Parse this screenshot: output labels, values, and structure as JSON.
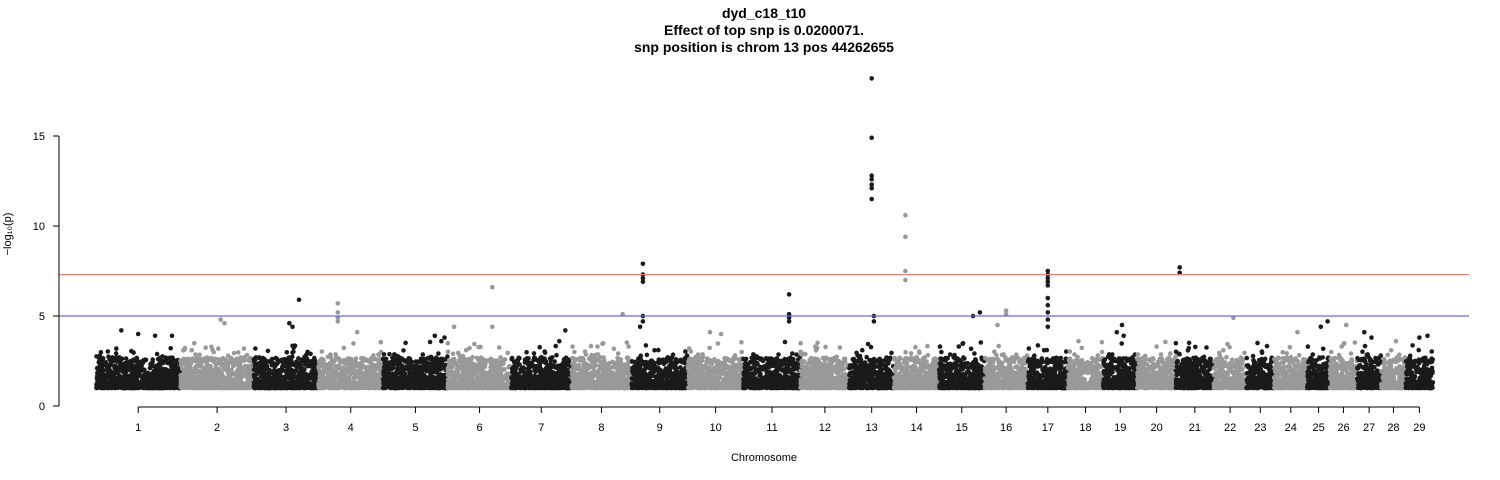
{
  "chart_data": {
    "type": "scatter",
    "title": "dyd_c18_t10",
    "subtitle_lines": [
      "Effect of top snp is 0.0200071.",
      "snp position is chrom 13 pos 44262655"
    ],
    "xlabel": "Chromosome",
    "ylabel": "−log₁₀(p)",
    "ylim": [
      0,
      18.5
    ],
    "yticks": [
      0,
      5,
      10,
      15
    ],
    "grid": false,
    "legend": "none",
    "series_colors": [
      "#1a1a1a",
      "#999999"
    ],
    "significance_lines": [
      {
        "value": 7.3,
        "color": "#f08080"
      },
      {
        "value": 5.0,
        "color": "#6b6be6"
      }
    ],
    "chromosomes": [
      {
        "label": "1",
        "size": 158,
        "peaks": [
          [
            0.3,
            4.2
          ],
          [
            0.5,
            4.0
          ],
          [
            0.7,
            3.9
          ],
          [
            0.9,
            3.9
          ]
        ]
      },
      {
        "label": "2",
        "size": 137,
        "peaks": [
          [
            0.55,
            4.8
          ],
          [
            0.6,
            4.6
          ]
        ]
      },
      {
        "label": "3",
        "size": 121,
        "peaks": [
          [
            0.55,
            4.6
          ],
          [
            0.6,
            4.4
          ],
          [
            0.7,
            5.9
          ]
        ]
      },
      {
        "label": "4",
        "size": 121,
        "peaks": [
          [
            0.3,
            4.9
          ],
          [
            0.3,
            4.7
          ],
          [
            0.3,
            5.2
          ],
          [
            0.3,
            5.7
          ],
          [
            0.6,
            4.1
          ]
        ]
      },
      {
        "label": "5",
        "size": 121,
        "peaks": [
          [
            0.8,
            3.9
          ],
          [
            0.9,
            3.6
          ],
          [
            0.95,
            3.8
          ]
        ]
      },
      {
        "label": "6",
        "size": 119,
        "peaks": [
          [
            0.7,
            6.6
          ],
          [
            0.7,
            4.4
          ],
          [
            0.1,
            4.4
          ]
        ]
      },
      {
        "label": "7",
        "size": 112,
        "peaks": [
          [
            0.9,
            4.2
          ],
          [
            0.8,
            3.6
          ]
        ]
      },
      {
        "label": "8",
        "size": 113,
        "peaks": [
          [
            0.85,
            5.1
          ],
          [
            0.95,
            3.3
          ]
        ]
      },
      {
        "label": "9",
        "size": 105,
        "peaks": [
          [
            0.2,
            7.9
          ],
          [
            0.2,
            7.3
          ],
          [
            0.2,
            7.1
          ],
          [
            0.2,
            6.9
          ],
          [
            0.2,
            5.0
          ],
          [
            0.2,
            4.7
          ],
          [
            0.15,
            4.4
          ]
        ]
      },
      {
        "label": "10",
        "size": 104,
        "peaks": [
          [
            0.4,
            4.1
          ],
          [
            0.6,
            4.0
          ]
        ]
      },
      {
        "label": "11",
        "size": 107,
        "peaks": [
          [
            0.8,
            6.2
          ],
          [
            0.8,
            5.1
          ],
          [
            0.8,
            4.9
          ],
          [
            0.8,
            4.7
          ]
        ]
      },
      {
        "label": "12",
        "size": 91,
        "peaks": [
          [
            0.3,
            3.3
          ]
        ]
      },
      {
        "label": "13",
        "size": 84,
        "peaks": [
          [
            0.5,
            18.2
          ],
          [
            0.5,
            14.9
          ],
          [
            0.5,
            12.8
          ],
          [
            0.5,
            12.6
          ],
          [
            0.5,
            12.3
          ],
          [
            0.5,
            12.1
          ],
          [
            0.5,
            11.5
          ],
          [
            0.55,
            5.0
          ],
          [
            0.55,
            4.7
          ]
        ]
      },
      {
        "label": "14",
        "size": 84,
        "peaks": [
          [
            0.25,
            10.6
          ],
          [
            0.25,
            9.4
          ],
          [
            0.25,
            7.5
          ],
          [
            0.25,
            7.0
          ]
        ]
      },
      {
        "label": "15",
        "size": 85,
        "peaks": [
          [
            0.75,
            5.0
          ],
          [
            0.9,
            5.2
          ]
        ]
      },
      {
        "label": "16",
        "size": 81,
        "peaks": [
          [
            0.5,
            5.3
          ],
          [
            0.5,
            5.1
          ],
          [
            0.3,
            4.5
          ]
        ]
      },
      {
        "label": "17",
        "size": 75,
        "peaks": [
          [
            0.5,
            7.5
          ],
          [
            0.5,
            7.3
          ],
          [
            0.5,
            7.1
          ],
          [
            0.5,
            6.9
          ],
          [
            0.5,
            6.7
          ],
          [
            0.5,
            6.0
          ],
          [
            0.5,
            5.6
          ],
          [
            0.5,
            5.2
          ],
          [
            0.5,
            4.8
          ],
          [
            0.5,
            4.4
          ]
        ]
      },
      {
        "label": "18",
        "size": 66,
        "peaks": [
          [
            0.3,
            3.6
          ]
        ]
      },
      {
        "label": "19",
        "size": 64,
        "peaks": [
          [
            0.55,
            4.5
          ],
          [
            0.4,
            4.1
          ],
          [
            0.6,
            3.9
          ]
        ]
      },
      {
        "label": "20",
        "size": 72,
        "peaks": [
          [
            0.5,
            3.3
          ]
        ]
      },
      {
        "label": "21",
        "size": 71,
        "peaks": [
          [
            0.1,
            7.7
          ],
          [
            0.1,
            7.4
          ]
        ]
      },
      {
        "label": "22",
        "size": 61,
        "peaks": [
          [
            0.6,
            4.9
          ]
        ]
      },
      {
        "label": "23",
        "size": 52,
        "peaks": [
          [
            0.4,
            3.5
          ]
        ]
      },
      {
        "label": "24",
        "size": 62,
        "peaks": [
          [
            0.7,
            4.1
          ]
        ]
      },
      {
        "label": "25",
        "size": 42,
        "peaks": [
          [
            0.6,
            4.4
          ],
          [
            0.9,
            4.7
          ]
        ]
      },
      {
        "label": "26",
        "size": 51,
        "peaks": [
          [
            0.6,
            4.5
          ]
        ]
      },
      {
        "label": "27",
        "size": 45,
        "peaks": [
          [
            0.3,
            4.1
          ],
          [
            0.6,
            3.8
          ]
        ]
      },
      {
        "label": "28",
        "size": 46,
        "peaks": [
          [
            0.6,
            3.6
          ]
        ]
      },
      {
        "label": "29",
        "size": 51,
        "peaks": [
          [
            0.8,
            3.9
          ],
          [
            0.5,
            3.8
          ]
        ]
      }
    ]
  }
}
